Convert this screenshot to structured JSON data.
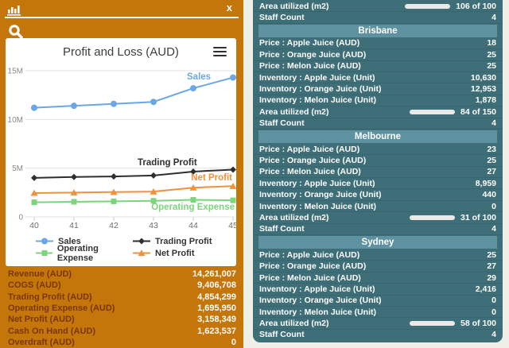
{
  "window": {
    "close_label": "x"
  },
  "colors": {
    "panel_orange": "#C4760A",
    "panel_teal": "#3E6E78",
    "header_teal": "#5E92A0",
    "bar_yellow": "#E9B01C",
    "bar_green": "#2E9E33",
    "fin_label": "#7A3603"
  },
  "chart_data": {
    "type": "line",
    "title": "Profit and Loss (AUD)",
    "x": [
      "40",
      "41",
      "42",
      "43",
      "44",
      "45"
    ],
    "xlabel": "",
    "ylabel": "",
    "ylim": [
      0,
      15.5
    ],
    "y_ticks": [
      {
        "label": "15M",
        "v": 15
      },
      {
        "label": "10M",
        "v": 10
      },
      {
        "label": "5M",
        "v": 5
      },
      {
        "label": "0",
        "v": 0
      }
    ],
    "grid": true,
    "legend_position": "bottom",
    "series": [
      {
        "name": "Sales",
        "color": "#6BA7E5",
        "marker": "circle",
        "values": [
          11.2,
          11.4,
          11.6,
          11.8,
          13.2,
          14.3
        ]
      },
      {
        "name": "Trading Profit",
        "color": "#2F2F2F",
        "marker": "diamond",
        "values": [
          4.0,
          4.1,
          4.15,
          4.25,
          4.65,
          4.85
        ]
      },
      {
        "name": "Net Profit",
        "color": "#F0913C",
        "marker": "triangle",
        "values": [
          2.45,
          2.5,
          2.55,
          2.6,
          3.0,
          3.16
        ]
      },
      {
        "name": "Operating Expense",
        "color": "#7CD47C",
        "marker": "square",
        "values": [
          1.5,
          1.55,
          1.6,
          1.65,
          1.75,
          1.7
        ]
      }
    ]
  },
  "left_panel": {
    "financials": {
      "rows": [
        {
          "label": "Revenue (AUD)",
          "value": "14,261,007"
        },
        {
          "label": "COGS (AUD)",
          "value": "9,406,708"
        },
        {
          "label": "Trading Profit (AUD)",
          "value": "4,854,299"
        },
        {
          "label": "Operating Expense (AUD)",
          "value": "1,695,950"
        },
        {
          "label": "Net Profit (AUD)",
          "value": "3,158,349"
        },
        {
          "label": "Cash On Hand (AUD)",
          "value": "1,623,537"
        },
        {
          "label": "Overdraft (AUD)",
          "value": "0"
        }
      ]
    }
  },
  "right_panel": {
    "rows": [
      {
        "type": "progress",
        "label": "Area utilized (m2)",
        "value": 106,
        "max": 100,
        "text": "106 of 100",
        "color": "#E9B01C"
      },
      {
        "type": "data",
        "label": "Staff Count",
        "value": "4"
      },
      {
        "type": "header",
        "label": "Brisbane"
      },
      {
        "type": "data",
        "label": "Price : Apple Juice (AUD)",
        "value": "18"
      },
      {
        "type": "data",
        "label": "Price : Orange Juice (AUD)",
        "value": "25"
      },
      {
        "type": "data",
        "label": "Price : Melon Juice (AUD)",
        "value": "25"
      },
      {
        "type": "data",
        "label": "Inventory : Apple Juice (Unit)",
        "value": "10,630"
      },
      {
        "type": "data",
        "label": "Inventory : Orange Juice (Unit)",
        "value": "12,953"
      },
      {
        "type": "data",
        "label": "Inventory : Melon Juice (Unit)",
        "value": "1,878"
      },
      {
        "type": "progress",
        "label": "Area utilized (m2)",
        "value": 84,
        "max": 150,
        "text": "84 of 150",
        "color": "#2E9E33"
      },
      {
        "type": "data",
        "label": "Staff Count",
        "value": "4"
      },
      {
        "type": "header",
        "label": "Melbourne"
      },
      {
        "type": "data",
        "label": "Price : Apple Juice (AUD)",
        "value": "23"
      },
      {
        "type": "data",
        "label": "Price : Orange Juice (AUD)",
        "value": "25"
      },
      {
        "type": "data",
        "label": "Price : Melon Juice (AUD)",
        "value": "27"
      },
      {
        "type": "data",
        "label": "Inventory : Apple Juice (Unit)",
        "value": "8,959"
      },
      {
        "type": "data",
        "label": "Inventory : Orange Juice (Unit)",
        "value": "440"
      },
      {
        "type": "data",
        "label": "Inventory : Melon Juice (Unit)",
        "value": "0"
      },
      {
        "type": "progress",
        "label": "Area utilized (m2)",
        "value": 31,
        "max": 100,
        "text": "31 of 100",
        "color": "#2E9E33"
      },
      {
        "type": "data",
        "label": "Staff Count",
        "value": "4"
      },
      {
        "type": "header",
        "label": "Sydney"
      },
      {
        "type": "data",
        "label": "Price : Apple Juice (AUD)",
        "value": "25"
      },
      {
        "type": "data",
        "label": "Price : Orange Juice (AUD)",
        "value": "27"
      },
      {
        "type": "data",
        "label": "Price : Melon Juice (AUD)",
        "value": "29"
      },
      {
        "type": "data",
        "label": "Inventory : Apple Juice (Unit)",
        "value": "2,416"
      },
      {
        "type": "data",
        "label": "Inventory : Orange Juice (Unit)",
        "value": "0"
      },
      {
        "type": "data",
        "label": "Inventory : Melon Juice (Unit)",
        "value": "0"
      },
      {
        "type": "progress",
        "label": "Area utilized (m2)",
        "value": 58,
        "max": 100,
        "text": "58 of 100",
        "color": "#2E9E33"
      },
      {
        "type": "data",
        "label": "Staff Count",
        "value": "4"
      }
    ]
  }
}
